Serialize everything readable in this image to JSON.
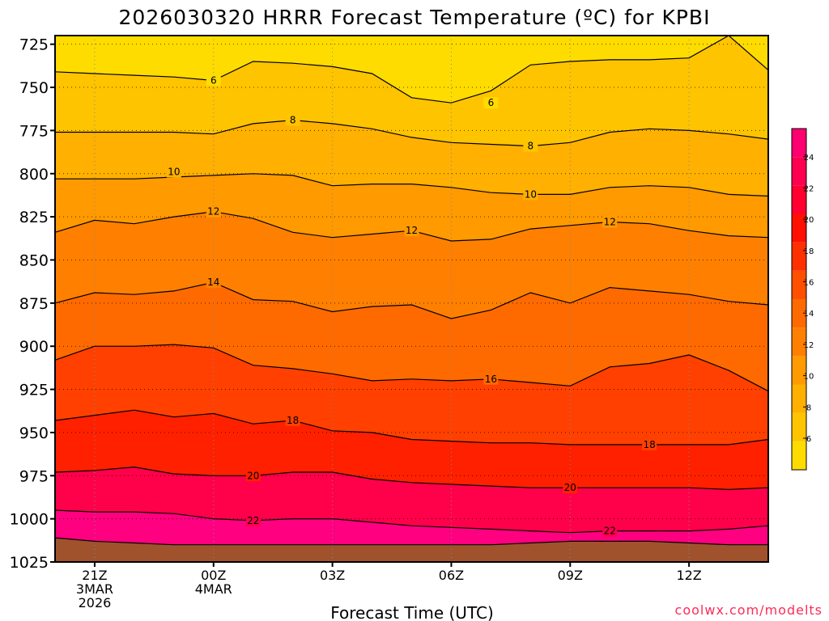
{
  "chart_data": {
    "type": "contour",
    "title": "2026030320 HRRR Forecast Temperature (ºC) for KPBI",
    "xlabel": "Forecast Time (UTC)",
    "ylabel": "",
    "credit": "coolwx.com/modelts",
    "y_axis": {
      "ticks": [
        725,
        750,
        775,
        800,
        825,
        850,
        875,
        900,
        925,
        950,
        975,
        1000,
        1025
      ],
      "range": [
        720,
        1025
      ],
      "units": "hPa",
      "direction": "increasing-down"
    },
    "x_axis": {
      "ticks": [
        {
          "hour": 0,
          "lines": [
            "21Z",
            "3MAR",
            "2026"
          ]
        },
        {
          "hour": 3,
          "lines": [
            "00Z",
            "4MAR"
          ]
        },
        {
          "hour": 6,
          "lines": [
            "03Z"
          ]
        },
        {
          "hour": 9,
          "lines": [
            "06Z"
          ]
        },
        {
          "hour": 12,
          "lines": [
            "09Z"
          ]
        },
        {
          "hour": 15,
          "lines": [
            "12Z"
          ]
        }
      ],
      "range": [
        -1,
        17
      ]
    },
    "grid": true,
    "surface_fill_color": "#a0522d",
    "contour_levels": [
      {
        "level": 6,
        "label": "6",
        "color": "#ffdc00",
        "points": [
          [
            -1,
            741
          ],
          [
            0,
            742
          ],
          [
            1,
            743
          ],
          [
            2,
            744
          ],
          [
            3,
            746
          ],
          [
            4,
            735
          ],
          [
            5,
            736
          ],
          [
            6,
            738
          ],
          [
            7,
            742
          ],
          [
            8,
            756
          ],
          [
            9,
            759
          ],
          [
            10,
            752
          ],
          [
            11,
            737
          ],
          [
            12,
            735
          ],
          [
            13,
            734
          ],
          [
            14,
            734
          ],
          [
            15,
            733
          ],
          [
            16,
            720
          ],
          [
            17,
            740
          ]
        ],
        "label_at": [
          [
            3,
            746
          ],
          [
            10.0,
            759
          ]
        ]
      },
      {
        "level": 8,
        "label": "8",
        "color": "#ffc400",
        "points": [
          [
            -1,
            776
          ],
          [
            0,
            776
          ],
          [
            1,
            776
          ],
          [
            2,
            776
          ],
          [
            3,
            777
          ],
          [
            4,
            771
          ],
          [
            5,
            769
          ],
          [
            6,
            771
          ],
          [
            7,
            774
          ],
          [
            8,
            779
          ],
          [
            9,
            782
          ],
          [
            10,
            783
          ],
          [
            11,
            784
          ],
          [
            12,
            782
          ],
          [
            13,
            776
          ],
          [
            14,
            774
          ],
          [
            15,
            775
          ],
          [
            16,
            777
          ],
          [
            17,
            780
          ]
        ],
        "label_at": [
          [
            5,
            769
          ],
          [
            11,
            784
          ]
        ]
      },
      {
        "level": 10,
        "label": "10",
        "color": "#ffb000",
        "points": [
          [
            -1,
            803
          ],
          [
            0,
            803
          ],
          [
            1,
            803
          ],
          [
            2,
            802
          ],
          [
            3,
            801
          ],
          [
            4,
            800
          ],
          [
            5,
            801
          ],
          [
            6,
            807
          ],
          [
            7,
            806
          ],
          [
            8,
            806
          ],
          [
            9,
            808
          ],
          [
            10,
            811
          ],
          [
            11,
            812
          ],
          [
            12,
            812
          ],
          [
            13,
            808
          ],
          [
            14,
            807
          ],
          [
            15,
            808
          ],
          [
            16,
            812
          ],
          [
            17,
            813
          ]
        ],
        "label_at": [
          [
            2,
            799
          ],
          [
            11,
            812
          ]
        ]
      },
      {
        "level": 12,
        "label": "12",
        "color": "#ff9a00",
        "points": [
          [
            -1,
            834
          ],
          [
            0,
            827
          ],
          [
            1,
            829
          ],
          [
            2,
            825
          ],
          [
            3,
            822
          ],
          [
            4,
            826
          ],
          [
            5,
            834
          ],
          [
            6,
            837
          ],
          [
            7,
            835
          ],
          [
            8,
            833
          ],
          [
            9,
            839
          ],
          [
            10,
            838
          ],
          [
            11,
            832
          ],
          [
            12,
            830
          ],
          [
            13,
            828
          ],
          [
            14,
            829
          ],
          [
            15,
            833
          ],
          [
            16,
            836
          ],
          [
            17,
            837
          ]
        ],
        "label_at": [
          [
            3,
            822
          ],
          [
            8,
            833
          ],
          [
            13,
            828
          ]
        ]
      },
      {
        "level": 14,
        "label": "14",
        "color": "#ff8000",
        "points": [
          [
            -1,
            875
          ],
          [
            0,
            869
          ],
          [
            1,
            870
          ],
          [
            2,
            868
          ],
          [
            3,
            863
          ],
          [
            4,
            873
          ],
          [
            5,
            874
          ],
          [
            6,
            880
          ],
          [
            7,
            877
          ],
          [
            8,
            876
          ],
          [
            9,
            884
          ],
          [
            10,
            879
          ],
          [
            11,
            869
          ],
          [
            12,
            875
          ],
          [
            13,
            866
          ],
          [
            14,
            868
          ],
          [
            15,
            870
          ],
          [
            16,
            874
          ],
          [
            17,
            876
          ]
        ],
        "label_at": [
          [
            3,
            863
          ]
        ]
      },
      {
        "level": 16,
        "label": "16",
        "color": "#ff6a00",
        "points": [
          [
            -1,
            908
          ],
          [
            0,
            900
          ],
          [
            1,
            900
          ],
          [
            2,
            899
          ],
          [
            3,
            901
          ],
          [
            4,
            911
          ],
          [
            5,
            913
          ],
          [
            6,
            916
          ],
          [
            7,
            920
          ],
          [
            8,
            919
          ],
          [
            9,
            920
          ],
          [
            10,
            919
          ],
          [
            11,
            921
          ],
          [
            12,
            923
          ],
          [
            13,
            912
          ],
          [
            14,
            910
          ],
          [
            15,
            905
          ],
          [
            16,
            914
          ],
          [
            17,
            926
          ]
        ],
        "label_at": [
          [
            10,
            919
          ]
        ]
      },
      {
        "level": 18,
        "label": "18",
        "color": "#ff4000",
        "points": [
          [
            -1,
            943
          ],
          [
            0,
            940
          ],
          [
            1,
            937
          ],
          [
            2,
            941
          ],
          [
            3,
            939
          ],
          [
            4,
            945
          ],
          [
            5,
            943
          ],
          [
            6,
            949
          ],
          [
            7,
            950
          ],
          [
            8,
            954
          ],
          [
            9,
            955
          ],
          [
            10,
            956
          ],
          [
            11,
            956
          ],
          [
            12,
            957
          ],
          [
            13,
            957
          ],
          [
            14,
            957
          ],
          [
            15,
            957
          ],
          [
            16,
            957
          ],
          [
            17,
            954
          ]
        ],
        "label_at": [
          [
            5,
            943
          ],
          [
            14,
            957
          ]
        ]
      },
      {
        "level": 20,
        "label": "20",
        "color": "#ff2000",
        "points": [
          [
            -1,
            973
          ],
          [
            0,
            972
          ],
          [
            1,
            970
          ],
          [
            2,
            974
          ],
          [
            3,
            975
          ],
          [
            4,
            975
          ],
          [
            5,
            973
          ],
          [
            6,
            973
          ],
          [
            7,
            977
          ],
          [
            8,
            979
          ],
          [
            9,
            980
          ],
          [
            10,
            981
          ],
          [
            11,
            982
          ],
          [
            12,
            982
          ],
          [
            13,
            982
          ],
          [
            14,
            982
          ],
          [
            15,
            982
          ],
          [
            16,
            983
          ],
          [
            17,
            982
          ]
        ],
        "label_at": [
          [
            4,
            975
          ],
          [
            12,
            982
          ]
        ]
      },
      {
        "level": 22,
        "label": "22",
        "color": "#ff004a",
        "points": [
          [
            -1,
            995
          ],
          [
            0,
            996
          ],
          [
            1,
            996
          ],
          [
            2,
            997
          ],
          [
            3,
            1000
          ],
          [
            4,
            1001
          ],
          [
            5,
            1000
          ],
          [
            6,
            1000
          ],
          [
            7,
            1002
          ],
          [
            8,
            1004
          ],
          [
            9,
            1005
          ],
          [
            10,
            1006
          ],
          [
            11,
            1007
          ],
          [
            12,
            1008
          ],
          [
            13,
            1007
          ],
          [
            14,
            1007
          ],
          [
            15,
            1007
          ],
          [
            16,
            1006
          ],
          [
            17,
            1004
          ]
        ],
        "label_at": [
          [
            4,
            1001
          ],
          [
            13,
            1007
          ]
        ]
      },
      {
        "level": 24,
        "label": "",
        "color": "#ff0080",
        "points": [
          [
            -1,
            1011
          ],
          [
            0,
            1013
          ],
          [
            1,
            1014
          ],
          [
            2,
            1015
          ],
          [
            3,
            1015
          ],
          [
            4,
            1015
          ],
          [
            5,
            1015
          ],
          [
            6,
            1015
          ],
          [
            7,
            1015
          ],
          [
            8,
            1015
          ],
          [
            9,
            1015
          ],
          [
            10,
            1015
          ],
          [
            11,
            1014
          ],
          [
            12,
            1013
          ],
          [
            13,
            1013
          ],
          [
            14,
            1013
          ],
          [
            15,
            1014
          ],
          [
            16,
            1015
          ],
          [
            17,
            1015
          ]
        ],
        "label_at": []
      }
    ],
    "colorbar": {
      "labels": [
        "6",
        "8",
        "10",
        "12",
        "14",
        "16",
        "18",
        "20",
        "22",
        "24"
      ],
      "colors": [
        "#ffdc00",
        "#ffc400",
        "#ffb000",
        "#ff9a00",
        "#ff8000",
        "#ff6a00",
        "#ff5000",
        "#ff3000",
        "#ff1000",
        "#ff0030",
        "#ff0050",
        "#ff0070"
      ]
    }
  }
}
